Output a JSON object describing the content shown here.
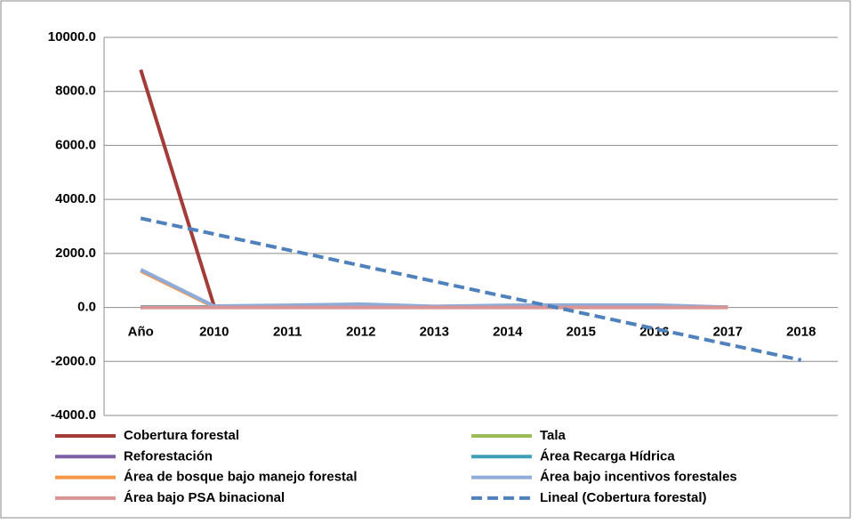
{
  "chart_data": {
    "type": "line",
    "categories": [
      "Año",
      "2010",
      "2011",
      "2012",
      "2013",
      "2014",
      "2015",
      "2016",
      "2017",
      "2018"
    ],
    "series": [
      {
        "name": "Cobertura forestal",
        "color": "#a33b38",
        "values": [
          8800,
          50,
          40,
          60,
          30,
          40,
          50,
          40,
          10,
          null
        ]
      },
      {
        "name": "Tala",
        "color": "#9bbb59",
        "values": [
          5,
          5,
          5,
          5,
          5,
          5,
          5,
          5,
          5,
          null
        ]
      },
      {
        "name": "Reforestación",
        "color": "#7f5fa6",
        "values": [
          10,
          10,
          10,
          10,
          10,
          10,
          10,
          10,
          5,
          null
        ]
      },
      {
        "name": "Área Recarga Hídrica",
        "color": "#3f9fb8",
        "values": [
          15,
          15,
          15,
          15,
          15,
          15,
          15,
          15,
          5,
          null
        ]
      },
      {
        "name": "Área de bosque bajo manejo forestal",
        "color": "#f79646",
        "values": [
          1350,
          20,
          20,
          20,
          20,
          20,
          20,
          20,
          10,
          null
        ]
      },
      {
        "name": "Área bajo incentivos forestales",
        "color": "#8fabd8",
        "values": [
          1400,
          50,
          80,
          120,
          40,
          80,
          90,
          90,
          10,
          null
        ]
      },
      {
        "name": "Área bajo PSA binacional",
        "color": "#d99593",
        "values": [
          0,
          0,
          0,
          0,
          0,
          0,
          0,
          0,
          0,
          null
        ]
      },
      {
        "name": "Lineal (Cobertura forestal)",
        "color": "#4f81bd",
        "line_style": "dashed",
        "values": [
          3300,
          2717,
          2133,
          1550,
          967,
          383,
          -200,
          -783,
          -1367,
          -1950
        ]
      }
    ],
    "ylim": [
      -4000,
      10000
    ],
    "yticks": [
      {
        "value": -4000,
        "label": "-4000.0"
      },
      {
        "value": -2000,
        "label": "-2000.0"
      },
      {
        "value": 0,
        "label": "0.0"
      },
      {
        "value": 2000,
        "label": "2000.0"
      },
      {
        "value": 4000,
        "label": "4000.0"
      },
      {
        "value": 6000,
        "label": "6000.0"
      },
      {
        "value": 8000,
        "label": "8000.0"
      },
      {
        "value": 10000,
        "label": "10000.0"
      }
    ],
    "grid": true,
    "legend": "bottom"
  }
}
